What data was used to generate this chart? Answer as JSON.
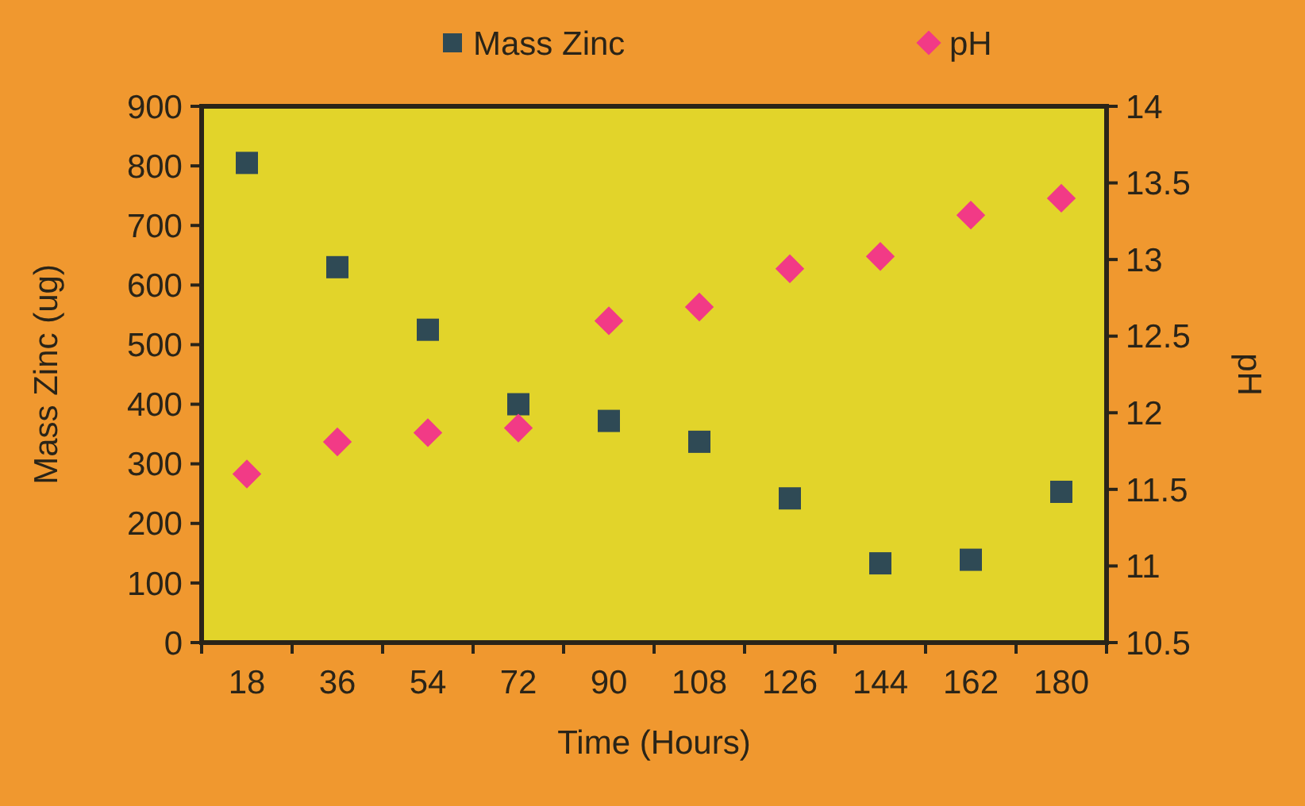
{
  "chart_data": {
    "type": "scatter",
    "xlabel": "Time (Hours)",
    "ylabel": "Mass Zinc (ug)",
    "y2label": "pH",
    "categories": [
      "18",
      "36",
      "54",
      "72",
      "90",
      "108",
      "126",
      "144",
      "162",
      "180"
    ],
    "series": [
      {
        "name": "Mass Zinc",
        "color": "#2f4a55",
        "marker": "square",
        "values": [
          805,
          630,
          525,
          400,
          372,
          337,
          242,
          133,
          139,
          253
        ]
      },
      {
        "name": "pH",
        "color": "#f23a86",
        "marker": "diamond",
        "axis": "y2",
        "values": [
          11.6,
          11.81,
          11.87,
          11.9,
          12.6,
          12.69,
          12.94,
          13.02,
          13.29,
          13.4
        ]
      }
    ],
    "ylim": [
      0,
      900
    ],
    "yticks": [
      0,
      100,
      200,
      300,
      400,
      500,
      600,
      700,
      800,
      900
    ],
    "y2lim": [
      10.5,
      14
    ],
    "y2ticks": [
      10.5,
      11,
      11.5,
      12,
      12.5,
      13,
      13.5,
      14
    ],
    "legend": "top",
    "grid": false
  }
}
